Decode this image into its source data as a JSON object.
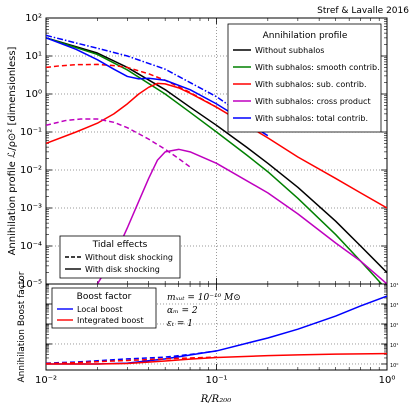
{
  "credit": "Stref & Lavalle 2016",
  "chart_data": [
    {
      "type": "line",
      "name": "annihilation-profile",
      "xscale": "log",
      "yscale": "log",
      "xlim": [
        0.01,
        1
      ],
      "ylim": [
        1e-05,
        100
      ],
      "ylabel": "Annihilation profile ℒ/ρ⊙² [dimensionless]",
      "x_tick_labels": [
        "",
        "",
        ""
      ],
      "y_tick_labels": [
        "10⁻⁵",
        "10⁻⁴",
        "10⁻³",
        "10⁻²",
        "10⁻¹",
        "10⁰",
        "10¹",
        "10²"
      ],
      "legend": {
        "title": "Annihilation profile",
        "position": "top-right",
        "entries": [
          {
            "label": "Without subhalos",
            "color": "#000000"
          },
          {
            "label": "With subhalos: smooth contrib.",
            "color": "#008000"
          },
          {
            "label": "With subhalos: sub. contrib.",
            "color": "#ff0000"
          },
          {
            "label": "With subhalos: cross product",
            "color": "#bf00bf"
          },
          {
            "label": "With subhalos: total contrib.",
            "color": "#0000ff"
          }
        ]
      },
      "tidal_legend": {
        "title": "Tidal effects",
        "position": "bottom-left",
        "entries": [
          {
            "label": "Without disk shocking",
            "style": "dashed"
          },
          {
            "label": "With disk shocking",
            "style": "solid"
          }
        ]
      },
      "series": [
        {
          "name": "Without subhalos",
          "color": "#000000",
          "style": "solid",
          "x": [
            0.01,
            0.02,
            0.03,
            0.05,
            0.07,
            0.1,
            0.15,
            0.2,
            0.3,
            0.5,
            0.7,
            1.0
          ],
          "y": [
            30,
            12,
            5,
            1.3,
            0.45,
            0.15,
            0.04,
            0.015,
            0.0035,
            0.00045,
            0.0001,
            2e-05
          ]
        },
        {
          "name": "With subhalos: smooth contrib.",
          "color": "#008000",
          "style": "solid",
          "x": [
            0.01,
            0.02,
            0.03,
            0.05,
            0.07,
            0.1,
            0.15,
            0.2,
            0.3,
            0.5,
            0.7,
            1.0
          ],
          "y": [
            30,
            11,
            4.3,
            1.0,
            0.33,
            0.1,
            0.025,
            0.009,
            0.0018,
            0.0002,
            4e-05,
            7e-06
          ]
        },
        {
          "name": "With subhalos: sub. contrib. (with disk shocking)",
          "color": "#ff0000",
          "style": "solid",
          "x": [
            0.01,
            0.015,
            0.02,
            0.025,
            0.03,
            0.035,
            0.04,
            0.045,
            0.05,
            0.06,
            0.07,
            0.1,
            0.2,
            0.3,
            0.5,
            0.7,
            1.0
          ],
          "y": [
            0.05,
            0.1,
            0.17,
            0.3,
            0.55,
            1.0,
            1.5,
            1.9,
            1.85,
            1.45,
            1.05,
            0.45,
            0.07,
            0.022,
            0.006,
            0.0025,
            0.001
          ]
        },
        {
          "name": "With subhalos: sub. contrib. (without disk shocking)",
          "color": "#ff0000",
          "style": "dashed",
          "x": [
            0.01,
            0.012,
            0.015,
            0.02,
            0.025,
            0.03,
            0.04,
            0.05,
            0.07,
            0.1
          ],
          "y": [
            5.0,
            5.5,
            5.9,
            6.0,
            5.6,
            5.0,
            3.4,
            2.3,
            1.1,
            0.45
          ]
        },
        {
          "name": "With subhalos: cross product (with disk shocking)",
          "color": "#bf00bf",
          "style": "solid",
          "x": [
            0.02,
            0.025,
            0.03,
            0.035,
            0.04,
            0.045,
            0.05,
            0.06,
            0.07,
            0.1,
            0.2,
            0.3,
            0.5,
            0.7,
            1.0
          ],
          "y": [
            1e-05,
            5e-05,
            0.0003,
            0.0015,
            0.006,
            0.018,
            0.03,
            0.035,
            0.03,
            0.015,
            0.0025,
            0.0007,
            0.00012,
            4e-05,
            1e-05
          ]
        },
        {
          "name": "With subhalos: cross product (without disk shocking)",
          "color": "#bf00bf",
          "style": "dashed",
          "x": [
            0.01,
            0.013,
            0.016,
            0.02,
            0.025,
            0.03,
            0.04,
            0.05,
            0.06,
            0.07
          ],
          "y": [
            0.15,
            0.2,
            0.22,
            0.22,
            0.18,
            0.13,
            0.065,
            0.035,
            0.02,
            0.012
          ]
        },
        {
          "name": "With subhalos: total contrib. (with disk shocking)",
          "color": "#0000ff",
          "style": "solid",
          "x": [
            0.01,
            0.015,
            0.02,
            0.025,
            0.03,
            0.035,
            0.04,
            0.05,
            0.07,
            0.1,
            0.2
          ],
          "y": [
            30,
            15,
            8,
            4.5,
            2.9,
            2.5,
            2.6,
            2.3,
            1.3,
            0.55,
            0.08
          ]
        },
        {
          "name": "With subhalos: total contrib. (without disk shocking)",
          "color": "#0000ff",
          "style": "dashdot",
          "x": [
            0.01,
            0.015,
            0.02,
            0.03,
            0.05,
            0.07,
            0.1,
            0.2
          ],
          "y": [
            35,
            22,
            16,
            10,
            4.5,
            2.0,
            0.85,
            0.1
          ]
        }
      ]
    },
    {
      "type": "line",
      "name": "boost-factor",
      "xscale": "log",
      "yscale": "log",
      "xlim": [
        0.01,
        1
      ],
      "ylim": [
        0.5,
        10000
      ],
      "xlabel": "R/R₂₀₀",
      "ylabel": "Annihilation Boost factor",
      "x_tick_labels": [
        "10⁻²",
        "10⁻¹",
        "10⁰"
      ],
      "y_tick_labels": [
        "10⁰",
        "10¹",
        "10²",
        "10³",
        "10⁴"
      ],
      "legend": {
        "title": "Boost factor",
        "position": "top-left",
        "entries": [
          {
            "label": "Local boost",
            "color": "#0000ff"
          },
          {
            "label": "Integrated boost",
            "color": "#ff0000"
          }
        ]
      },
      "annotations": [
        "mₓᵤₜ = 10⁻¹⁰ M⊙",
        "αₘ = 2",
        "εₜ = 1"
      ],
      "series": [
        {
          "name": "Local boost",
          "color": "#0000ff",
          "style": "solid",
          "x": [
            0.01,
            0.02,
            0.03,
            0.05,
            0.07,
            0.1,
            0.2,
            0.3,
            0.5,
            0.7,
            1.0
          ],
          "y": [
            1.0,
            1.0,
            1.1,
            1.8,
            2.8,
            4.5,
            20,
            55,
            250,
            800,
            2500
          ]
        },
        {
          "name": "Local boost (without disk shocking)",
          "color": "#0000ff",
          "style": "dashed",
          "x": [
            0.01,
            0.015,
            0.02,
            0.03,
            0.05,
            0.07,
            0.1
          ],
          "y": [
            1.1,
            1.25,
            1.45,
            1.8,
            2.2,
            3.0,
            4.5
          ]
        },
        {
          "name": "Integrated boost",
          "color": "#ff0000",
          "style": "solid",
          "x": [
            0.01,
            0.02,
            0.03,
            0.05,
            0.07,
            0.1,
            0.2,
            0.3,
            0.5,
            0.7,
            1.0
          ],
          "y": [
            1.0,
            1.0,
            1.05,
            1.4,
            1.75,
            2.1,
            2.6,
            2.85,
            3.1,
            3.2,
            3.3
          ]
        },
        {
          "name": "Integrated boost (without disk shocking)",
          "color": "#ff0000",
          "style": "dashed",
          "x": [
            0.01,
            0.015,
            0.02,
            0.03,
            0.05,
            0.07,
            0.1
          ],
          "y": [
            1.05,
            1.15,
            1.3,
            1.5,
            1.8,
            2.0,
            2.2
          ]
        }
      ]
    }
  ]
}
